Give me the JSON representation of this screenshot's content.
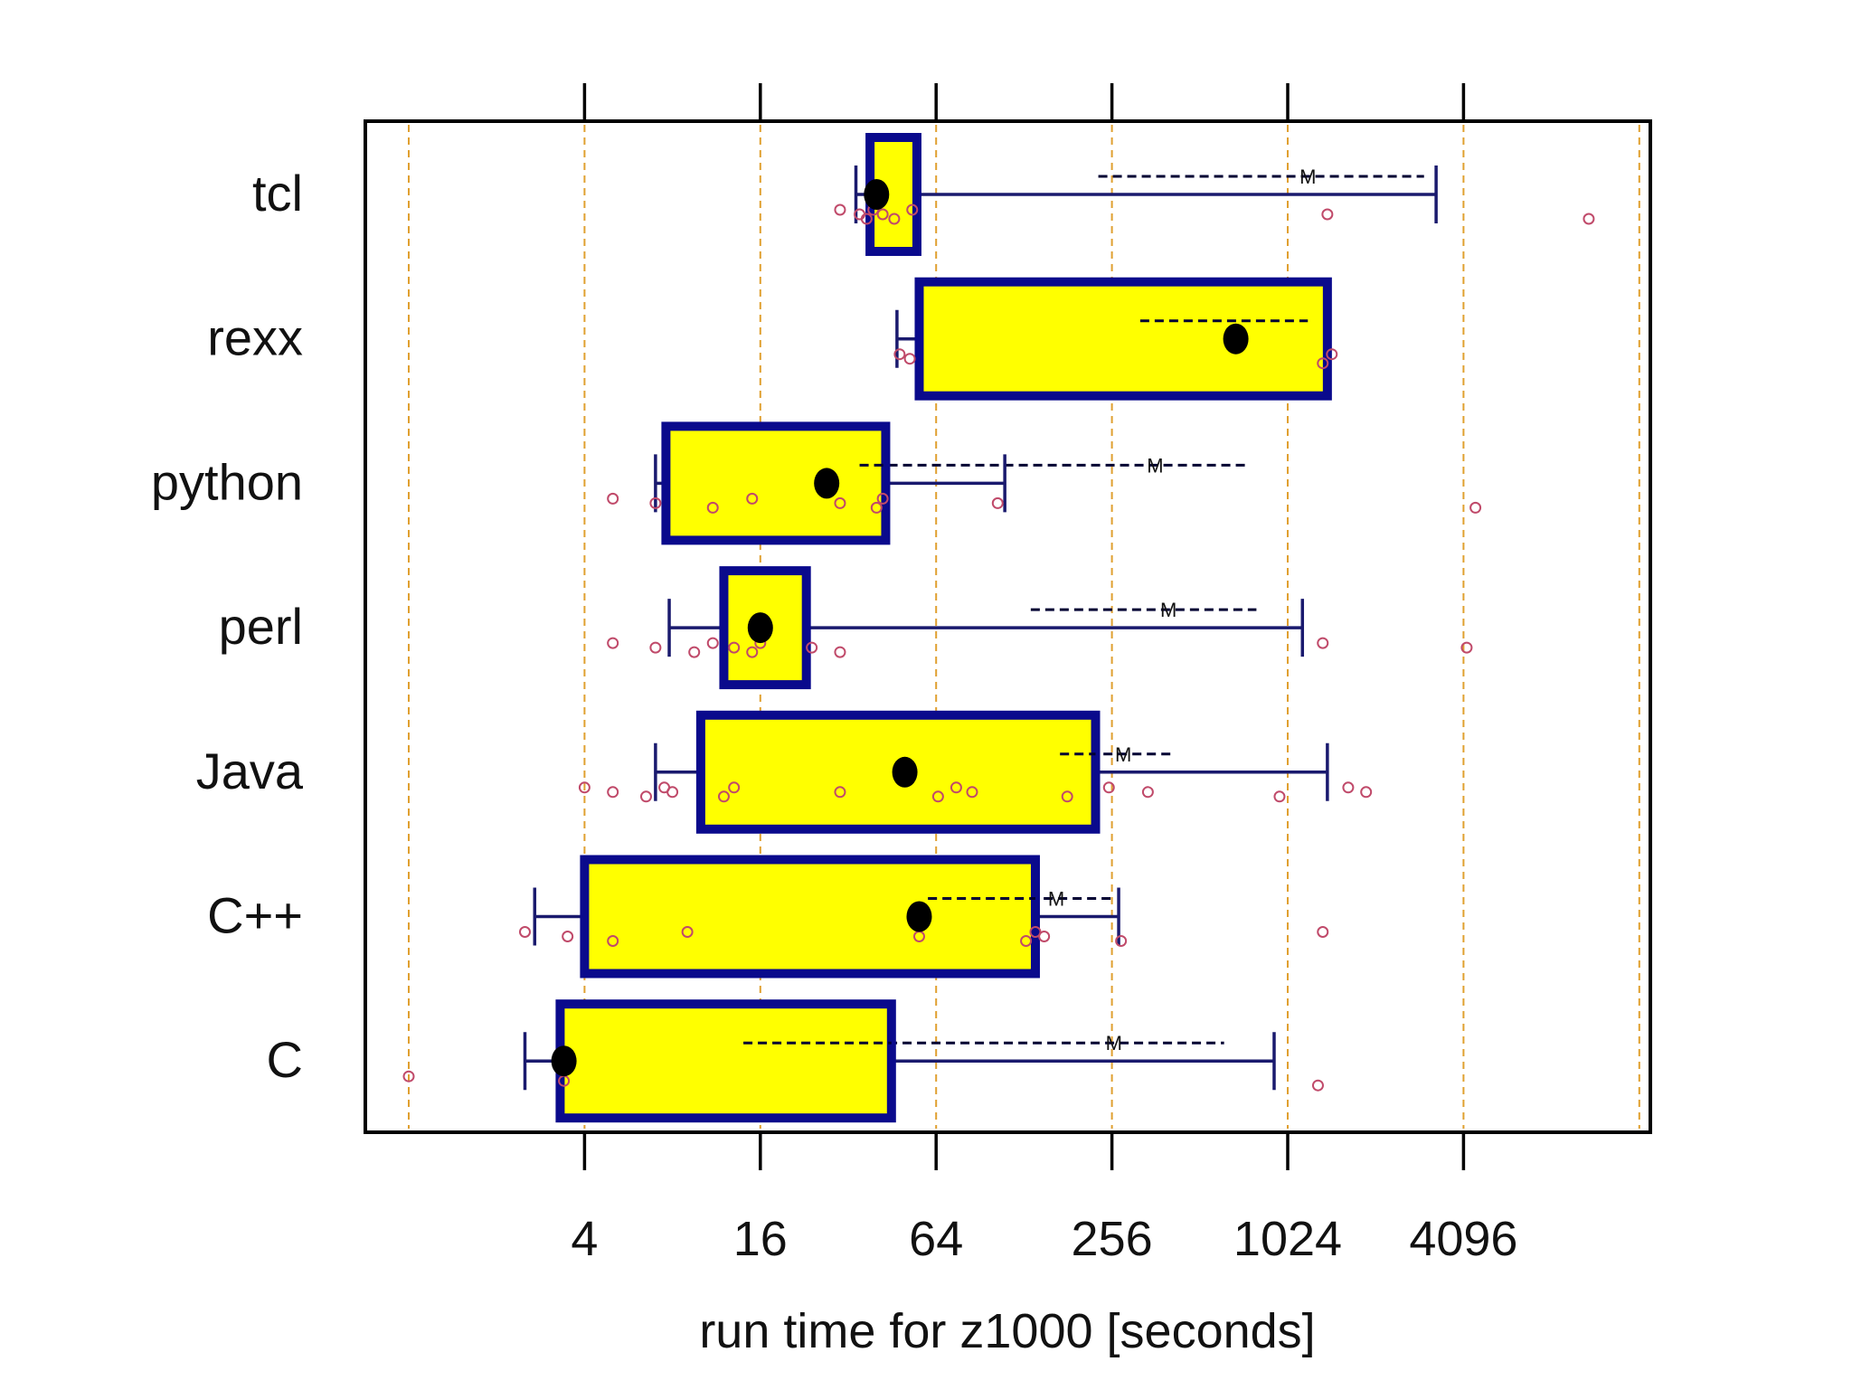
{
  "chart_data": {
    "type": "boxplot",
    "orientation": "horizontal",
    "xscale": "log2",
    "xlim": [
      1,
      16384
    ],
    "xlabel": "run time for z1000 [seconds]",
    "ticks": [
      {
        "value": 4,
        "label": "4"
      },
      {
        "value": 16,
        "label": "16"
      },
      {
        "value": 64,
        "label": "64"
      },
      {
        "value": 256,
        "label": "256"
      },
      {
        "value": 1024,
        "label": "1024"
      },
      {
        "value": 4096,
        "label": "4096"
      }
    ],
    "gridlines": [
      1,
      4,
      16,
      64,
      256,
      1024,
      4096,
      16384
    ],
    "colors": {
      "box_fill": "#ffff00",
      "box_border": "#0a0a8c",
      "whisker": "#1a1a6e",
      "median": "#000000",
      "grid": "#e0a030",
      "outlier": "#c04a6a",
      "frame": "#000000"
    },
    "groups": [
      {
        "name": "tcl",
        "whisker_low": 34,
        "q1": 38,
        "median": 40,
        "q3": 55,
        "whisker_high": 3300,
        "mean_line": [
          230,
          3000
        ],
        "mean": 1200,
        "points": [
          30,
          35,
          37,
          39,
          42,
          46,
          53,
          1400,
          11000
        ]
      },
      {
        "name": "rexx",
        "whisker_low": 47,
        "q1": 56,
        "median": 680,
        "q3": 1400,
        "whisker_high": 1400,
        "mean_line": [
          320,
          1200
        ],
        "mean": 730,
        "points": [
          48,
          52,
          1350,
          1450
        ]
      },
      {
        "name": "python",
        "whisker_low": 7,
        "q1": 7.6,
        "median": 27,
        "q3": 43,
        "whisker_high": 110,
        "mean_line": [
          35,
          760
        ],
        "mean": 360,
        "points": [
          5,
          7,
          11,
          15,
          30,
          40,
          42,
          104,
          4500
        ]
      },
      {
        "name": "perl",
        "whisker_low": 7.8,
        "q1": 12,
        "median": 16,
        "q3": 23,
        "whisker_high": 1150,
        "mean_line": [
          135,
          800
        ],
        "mean": 400,
        "points": [
          5,
          7,
          9.5,
          11,
          13,
          15,
          16,
          24,
          30,
          1350,
          4200
        ]
      },
      {
        "name": "Java",
        "whisker_low": 7,
        "q1": 10,
        "median": 50,
        "q3": 225,
        "whisker_high": 1400,
        "mean_line": [
          170,
          420
        ],
        "mean": 280,
        "points": [
          4,
          5,
          6.5,
          7.5,
          8,
          12,
          13,
          30,
          65,
          75,
          85,
          180,
          250,
          340,
          960,
          1650,
          1900
        ]
      },
      {
        "name": "C++",
        "whisker_low": 2.7,
        "q1": 4,
        "median": 56,
        "q3": 140,
        "whisker_high": 270,
        "mean_line": [
          60,
          255
        ],
        "mean": 165,
        "points": [
          2.5,
          3.5,
          5,
          9,
          56,
          130,
          140,
          150,
          275,
          1350
        ]
      },
      {
        "name": "C",
        "whisker_low": 2.5,
        "q1": 3.3,
        "median": 3.4,
        "q3": 45,
        "whisker_high": 920,
        "mean_line": [
          14,
          620
        ],
        "mean": 260,
        "points": [
          1,
          3.4,
          1300
        ]
      }
    ]
  }
}
